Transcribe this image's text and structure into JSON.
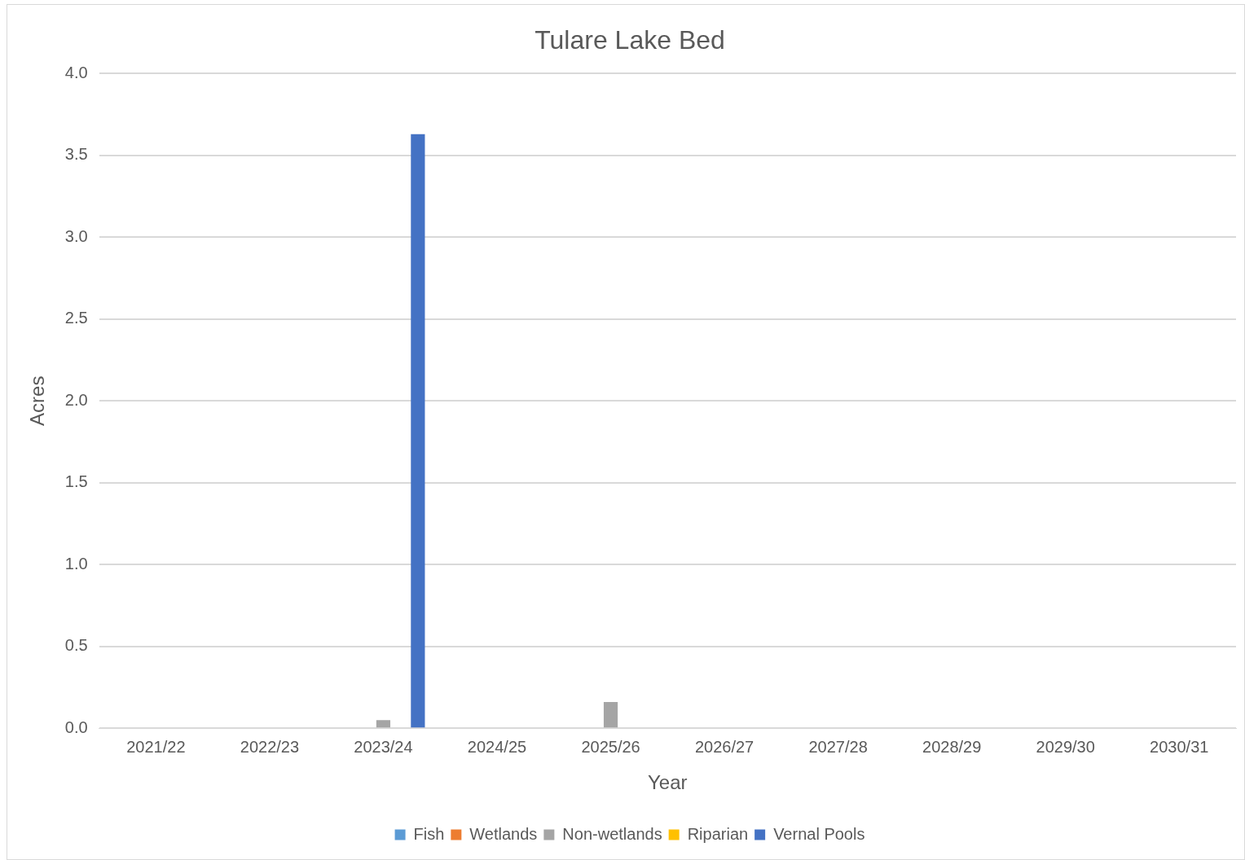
{
  "chart_data": {
    "type": "bar",
    "title": "Tulare Lake Bed",
    "xlabel": "Year",
    "ylabel": "Acres",
    "categories": [
      "2021/22",
      "2022/23",
      "2023/24",
      "2024/25",
      "2025/26",
      "2026/27",
      "2027/28",
      "2028/29",
      "2029/30",
      "2030/31"
    ],
    "series": [
      {
        "name": "Fish",
        "color": "#5b9bd5",
        "values": [
          0,
          0,
          0,
          0,
          0,
          0,
          0,
          0,
          0,
          0
        ]
      },
      {
        "name": "Wetlands",
        "color": "#ed7d31",
        "values": [
          0,
          0,
          0,
          0,
          0,
          0,
          0,
          0,
          0,
          0
        ]
      },
      {
        "name": "Non-wetlands",
        "color": "#a5a5a5",
        "values": [
          0,
          0,
          0.05,
          0,
          0.16,
          0,
          0,
          0,
          0,
          0
        ]
      },
      {
        "name": "Riparian",
        "color": "#ffc000",
        "values": [
          0,
          0,
          0,
          0,
          0,
          0,
          0,
          0,
          0,
          0
        ]
      },
      {
        "name": "Vernal Pools",
        "color": "#4472c4",
        "values": [
          0,
          0,
          3.63,
          0,
          0,
          0,
          0,
          0,
          0,
          0
        ]
      }
    ],
    "ylim": [
      0,
      4
    ],
    "yticks": [
      {
        "value": 0,
        "label": "0.0"
      },
      {
        "value": 0.5,
        "label": "0.5"
      },
      {
        "value": 1,
        "label": "1.0"
      },
      {
        "value": 1.5,
        "label": "1.5"
      },
      {
        "value": 2,
        "label": "2.0"
      },
      {
        "value": 2.5,
        "label": "2.5"
      },
      {
        "value": 3,
        "label": "3.0"
      },
      {
        "value": 3.5,
        "label": "3.5"
      },
      {
        "value": 4,
        "label": "4.0"
      }
    ],
    "grid": "y",
    "legend": "bottom"
  }
}
